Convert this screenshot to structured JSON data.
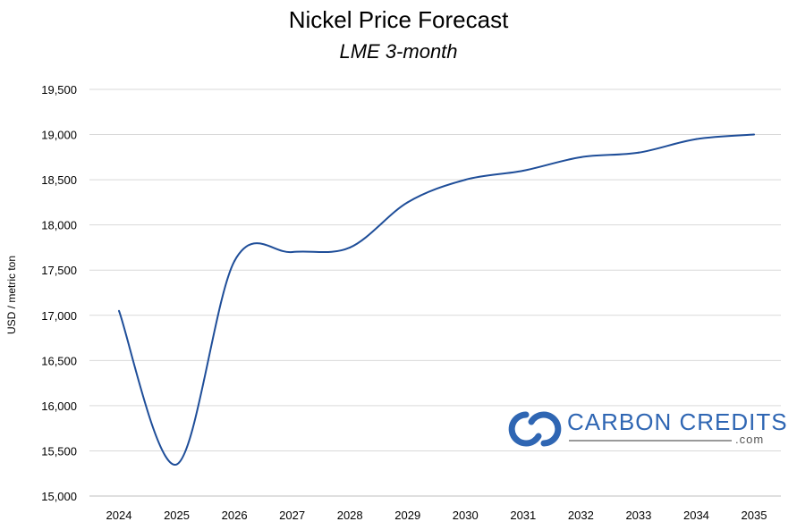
{
  "chart_data": {
    "type": "line",
    "title": "Nickel Price Forecast",
    "subtitle": "LME 3-month",
    "xlabel": "",
    "ylabel": "USD / metric ton",
    "categories": [
      "2024",
      "2025",
      "2026",
      "2027",
      "2028",
      "2029",
      "2030",
      "2031",
      "2032",
      "2033",
      "2034",
      "2035"
    ],
    "series": [
      {
        "name": "Nickel price",
        "values": [
          17050,
          15350,
          17600,
          17700,
          17750,
          18250,
          18500,
          18600,
          18750,
          18800,
          18950,
          19000
        ]
      }
    ],
    "ylim": [
      15000,
      19500
    ],
    "yticks": [
      15000,
      15500,
      16000,
      16500,
      17000,
      17500,
      18000,
      18500,
      19000,
      19500
    ],
    "ytick_labels": [
      "15,000",
      "15,500",
      "16,000",
      "16,500",
      "17,000",
      "17,500",
      "18,000",
      "18,500",
      "19,000",
      "19,500"
    ],
    "grid": true,
    "line_color": "#1f4e99",
    "grid_color": "#d9d9d9"
  },
  "watermark": {
    "brand": "CARBON CREDITS",
    "suffix": ".com",
    "color": "#2f66b3",
    "icon": "carbon-credits-logo-icon"
  }
}
